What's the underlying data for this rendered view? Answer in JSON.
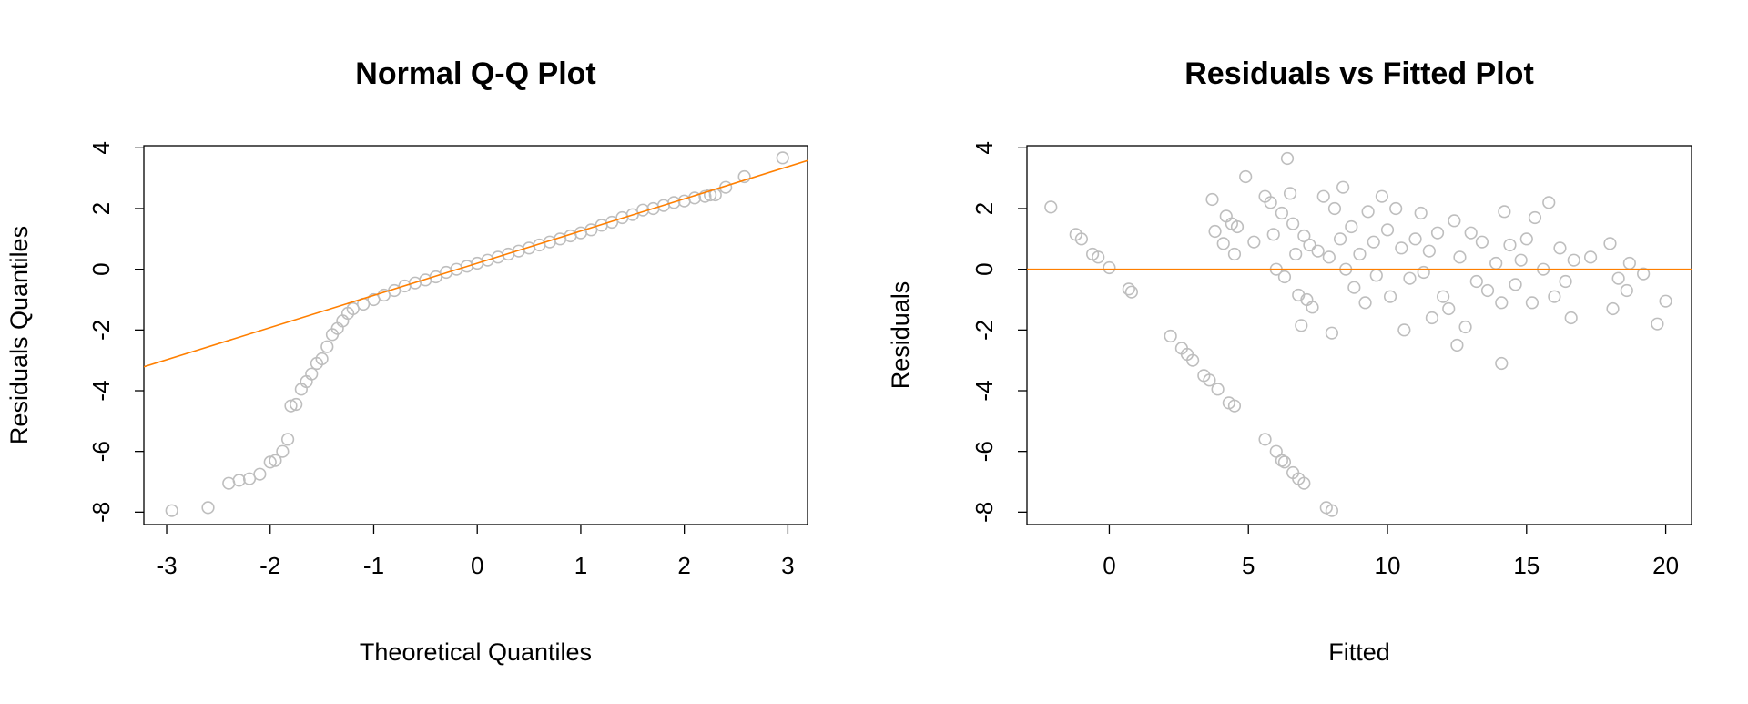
{
  "chart_data": [
    {
      "type": "qq",
      "title": "Normal Q-Q Plot",
      "x_label": "Theoretical Quantiles",
      "y_label": "Residuals Quantiles",
      "color": "#bebebe",
      "x": [
        -2.95,
        -2.6,
        -2.4,
        -2.3,
        -2.2,
        -2.1,
        -2.0,
        -1.95,
        -1.88,
        -1.83,
        -1.8,
        -1.75,
        -1.7,
        -1.65,
        -1.6,
        -1.55,
        -1.5,
        -1.45,
        -1.4,
        -1.35,
        -1.3,
        -1.25,
        -1.2,
        -1.1,
        -1.0,
        -0.9,
        -0.8,
        -0.7,
        -0.6,
        -0.5,
        -0.4,
        -0.3,
        -0.2,
        -0.1,
        0.0,
        0.1,
        0.2,
        0.3,
        0.4,
        0.5,
        0.6,
        0.7,
        0.8,
        0.9,
        1.0,
        1.1,
        1.2,
        1.3,
        1.4,
        1.5,
        1.6,
        1.7,
        1.8,
        1.9,
        2.0,
        2.1,
        2.2,
        2.25,
        2.3,
        2.4,
        2.58,
        2.95
      ],
      "y": [
        -7.95,
        -7.85,
        -7.05,
        -6.95,
        -6.9,
        -6.75,
        -6.35,
        -6.3,
        -6.0,
        -5.6,
        -4.5,
        -4.45,
        -3.95,
        -3.7,
        -3.45,
        -3.1,
        -2.95,
        -2.55,
        -2.15,
        -1.95,
        -1.7,
        -1.45,
        -1.3,
        -1.15,
        -1.0,
        -0.85,
        -0.7,
        -0.55,
        -0.45,
        -0.35,
        -0.25,
        -0.1,
        0.0,
        0.1,
        0.2,
        0.3,
        0.4,
        0.5,
        0.6,
        0.7,
        0.8,
        0.9,
        1.0,
        1.1,
        1.2,
        1.3,
        1.45,
        1.55,
        1.7,
        1.8,
        1.95,
        2.0,
        2.1,
        2.2,
        2.25,
        2.35,
        2.4,
        2.45,
        2.45,
        2.7,
        3.05,
        3.67
      ],
      "ref_line": {
        "intercept": 0.2,
        "slope": 1.06,
        "color": "#ff7f00"
      },
      "xlim": [
        -3.22,
        3.19
      ],
      "ylim": [
        -8.41,
        4.07
      ],
      "xticks": [
        -3,
        -2,
        -1,
        0,
        1,
        2,
        3
      ],
      "yticks": [
        -8,
        -6,
        -4,
        -2,
        0,
        2,
        4
      ]
    },
    {
      "type": "residuals",
      "title": "Residuals vs Fitted Plot",
      "x_label": "Fitted",
      "y_label": "Residuals",
      "color": "#bebebe",
      "x": [
        -2.1,
        -1.2,
        -1.0,
        -0.6,
        -0.4,
        0,
        0.7,
        0.8,
        2.2,
        2.6,
        2.8,
        3.0,
        3.4,
        3.6,
        3.9,
        4.3,
        4.5,
        5.6,
        6.0,
        6.2,
        6.3,
        6.6,
        6.8,
        7.0,
        7.8,
        8.0,
        3.7,
        3.8,
        4.1,
        4.2,
        4.4,
        4.5,
        4.6,
        4.9,
        5.2,
        5.6,
        5.8,
        5.9,
        6.0,
        6.2,
        6.3,
        6.4,
        6.5,
        6.6,
        6.7,
        6.8,
        6.9,
        7.0,
        7.1,
        7.2,
        7.3,
        7.5,
        7.7,
        7.9,
        8.0,
        8.1,
        8.3,
        8.4,
        8.5,
        8.7,
        8.8,
        9.0,
        9.2,
        9.3,
        9.5,
        9.6,
        9.8,
        10.0,
        10.1,
        10.3,
        10.5,
        10.6,
        10.8,
        11.0,
        11.2,
        11.3,
        11.5,
        11.6,
        11.8,
        12.0,
        12.2,
        12.4,
        12.5,
        12.6,
        12.8,
        13.0,
        13.2,
        13.4,
        13.6,
        13.9,
        14.1,
        14.1,
        14.2,
        14.4,
        14.6,
        14.8,
        15.0,
        15.2,
        15.3,
        15.6,
        15.8,
        16.0,
        16.2,
        16.4,
        16.6,
        16.7,
        17.3,
        18.0,
        18.1,
        18.3,
        18.6,
        18.7,
        19.2,
        19.7,
        20.0
      ],
      "y": [
        2.05,
        1.15,
        1.0,
        0.5,
        0.4,
        0.05,
        -0.65,
        -0.75,
        -2.2,
        -2.6,
        -2.8,
        -3.0,
        -3.5,
        -3.65,
        -3.95,
        -4.4,
        -4.5,
        -5.6,
        -6.0,
        -6.3,
        -6.35,
        -6.7,
        -6.9,
        -7.05,
        -7.85,
        -7.95,
        2.3,
        1.25,
        0.85,
        1.75,
        1.5,
        0.5,
        1.4,
        3.05,
        0.9,
        2.4,
        2.2,
        1.15,
        0.0,
        1.85,
        -0.25,
        3.65,
        2.5,
        1.5,
        0.5,
        -0.85,
        -1.85,
        1.1,
        -1.0,
        0.8,
        -1.25,
        0.6,
        2.4,
        0.4,
        -2.1,
        2.0,
        1.0,
        2.7,
        0.0,
        1.4,
        -0.6,
        0.5,
        -1.1,
        1.9,
        0.9,
        -0.2,
        2.4,
        1.3,
        -0.9,
        2.0,
        0.7,
        -2.0,
        -0.3,
        1.0,
        1.85,
        -0.1,
        0.6,
        -1.6,
        1.2,
        -0.9,
        -1.3,
        1.6,
        -2.5,
        0.4,
        -1.9,
        1.2,
        -0.4,
        0.9,
        -0.7,
        0.2,
        -1.1,
        -3.1,
        1.9,
        0.8,
        -0.5,
        0.3,
        1.0,
        -1.1,
        1.7,
        0.0,
        2.2,
        -0.9,
        0.7,
        -0.4,
        -1.6,
        0.3,
        0.4,
        0.85,
        -1.3,
        -0.3,
        -0.7,
        0.2,
        -0.15,
        -1.8,
        -1.05
      ],
      "hline": {
        "y": 0,
        "color": "#ff7f00"
      },
      "xlim": [
        -2.96,
        20.93
      ],
      "ylim": [
        -8.41,
        4.07
      ],
      "xticks": [
        0,
        5,
        10,
        15,
        20
      ],
      "yticks": [
        -8,
        -6,
        -4,
        -2,
        0,
        2,
        4
      ]
    }
  ]
}
